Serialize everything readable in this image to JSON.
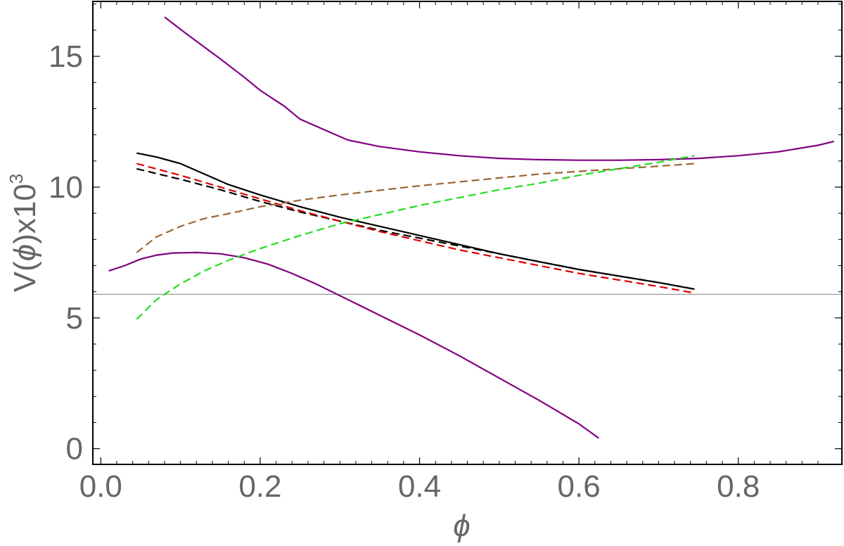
{
  "chart_data": {
    "type": "line",
    "title": "",
    "xlabel": "ϕ",
    "ylabel_parts": [
      "V(",
      "ϕ",
      ")x10",
      "3"
    ],
    "xlim": [
      -0.01,
      0.93
    ],
    "ylim": [
      -0.6,
      17.1
    ],
    "xticks": [
      0.0,
      0.2,
      0.4,
      0.6,
      0.8
    ],
    "xtick_labels": [
      "0.0",
      "0.2",
      "0.4",
      "0.6",
      "0.8"
    ],
    "yticks": [
      0,
      5,
      10,
      15
    ],
    "ytick_labels": [
      "0",
      "5",
      "10",
      "15"
    ],
    "grid": false,
    "reference_line_y": 5.9,
    "colors": {
      "purple": "#800080",
      "black": "#000000",
      "red": "#e00000",
      "brown": "#996633",
      "green": "#22dd22",
      "reference": "#999999",
      "text": "#666666"
    },
    "series": [
      {
        "color": "#800080",
        "style": "solid",
        "x": [
          0.08,
          0.11,
          0.15,
          0.18,
          0.2,
          0.23,
          0.25,
          0.28,
          0.31,
          0.35,
          0.4,
          0.45,
          0.5,
          0.55,
          0.6,
          0.65,
          0.7,
          0.75,
          0.8,
          0.85,
          0.9,
          0.92
        ],
        "y": [
          16.5,
          15.8,
          14.9,
          14.2,
          13.7,
          13.1,
          12.6,
          12.2,
          11.8,
          11.55,
          11.35,
          11.2,
          11.1,
          11.05,
          11.03,
          11.03,
          11.05,
          11.1,
          11.2,
          11.35,
          11.6,
          11.75
        ]
      },
      {
        "color": "#800080",
        "style": "solid",
        "x": [
          0.01,
          0.03,
          0.05,
          0.07,
          0.09,
          0.12,
          0.15,
          0.18,
          0.21,
          0.24,
          0.27,
          0.3,
          0.35,
          0.4,
          0.45,
          0.5,
          0.55,
          0.6,
          0.625
        ],
        "y": [
          6.8,
          7.0,
          7.25,
          7.4,
          7.48,
          7.5,
          7.45,
          7.3,
          7.05,
          6.7,
          6.3,
          5.85,
          5.1,
          4.35,
          3.55,
          2.7,
          1.85,
          0.95,
          0.4
        ]
      },
      {
        "color": "#000000",
        "style": "solid",
        "x": [
          0.045,
          0.07,
          0.1,
          0.13,
          0.16,
          0.2,
          0.25,
          0.3,
          0.35,
          0.4,
          0.45,
          0.5,
          0.55,
          0.6,
          0.65,
          0.7,
          0.745
        ],
        "y": [
          11.3,
          11.15,
          10.9,
          10.5,
          10.1,
          9.7,
          9.25,
          8.85,
          8.5,
          8.15,
          7.8,
          7.45,
          7.15,
          6.85,
          6.6,
          6.35,
          6.1
        ]
      },
      {
        "color": "#000000",
        "style": "dashed",
        "x": [
          0.045,
          0.1,
          0.15,
          0.2,
          0.25,
          0.3,
          0.35,
          0.4,
          0.45,
          0.5,
          0.55,
          0.6,
          0.65,
          0.7,
          0.745
        ],
        "y": [
          10.7,
          10.3,
          9.9,
          9.45,
          9.05,
          8.7,
          8.35,
          8.05,
          7.75,
          7.45,
          7.15,
          6.85,
          6.6,
          6.35,
          6.1
        ]
      },
      {
        "color": "#e00000",
        "style": "dashed",
        "x": [
          0.045,
          0.1,
          0.15,
          0.2,
          0.25,
          0.3,
          0.35,
          0.4,
          0.45,
          0.5,
          0.55,
          0.6,
          0.65,
          0.7,
          0.745
        ],
        "y": [
          10.9,
          10.45,
          10.0,
          9.55,
          9.1,
          8.7,
          8.3,
          7.95,
          7.6,
          7.3,
          7.0,
          6.7,
          6.45,
          6.2,
          5.95
        ]
      },
      {
        "color": "#996633",
        "style": "dashed",
        "x": [
          0.045,
          0.07,
          0.1,
          0.13,
          0.17,
          0.2,
          0.25,
          0.3,
          0.35,
          0.4,
          0.45,
          0.5,
          0.55,
          0.6,
          0.65,
          0.7,
          0.745
        ],
        "y": [
          7.5,
          8.1,
          8.5,
          8.8,
          9.05,
          9.25,
          9.5,
          9.7,
          9.88,
          10.05,
          10.2,
          10.35,
          10.5,
          10.6,
          10.7,
          10.8,
          10.9
        ]
      },
      {
        "color": "#22dd22",
        "style": "dashed",
        "x": [
          0.045,
          0.07,
          0.1,
          0.13,
          0.16,
          0.2,
          0.25,
          0.3,
          0.35,
          0.4,
          0.45,
          0.5,
          0.55,
          0.6,
          0.65,
          0.7,
          0.745
        ],
        "y": [
          4.95,
          5.7,
          6.3,
          6.8,
          7.2,
          7.65,
          8.15,
          8.6,
          8.95,
          9.3,
          9.6,
          9.9,
          10.15,
          10.45,
          10.7,
          10.95,
          11.2
        ]
      }
    ]
  }
}
